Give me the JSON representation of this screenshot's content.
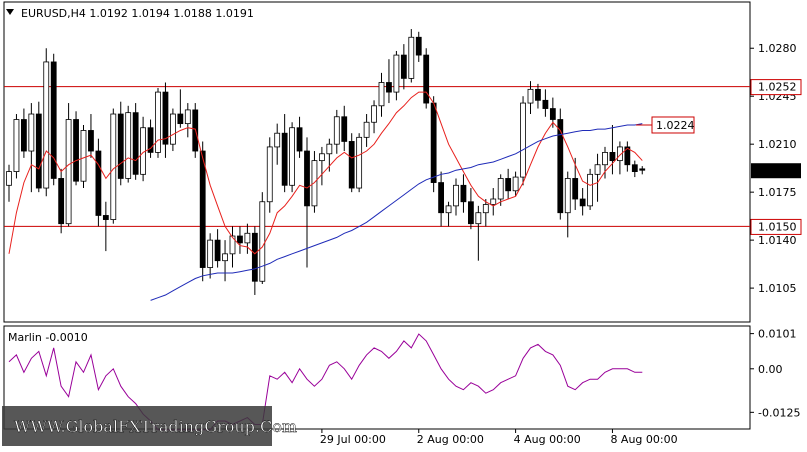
{
  "chart_header": {
    "symbol_line": "EURUSD,H4  1.0192 1.0194 1.0188 1.0191",
    "menu_icon": "triangle-down-icon"
  },
  "price_axis": {
    "ticks": [
      "1.0280",
      "1.0245",
      "1.0210",
      "1.0175",
      "1.0140",
      "1.0105"
    ],
    "tick_values": [
      1.028,
      1.0245,
      1.021,
      1.0175,
      1.014,
      1.0105
    ],
    "range": [
      1.0081,
      1.0313
    ]
  },
  "levels": {
    "upper": {
      "label": "1.0252",
      "value": 1.0252,
      "color": "#cc0000"
    },
    "lower": {
      "label": "1.0150",
      "value": 1.015,
      "color": "#cc0000"
    },
    "current": {
      "label": "1.0191",
      "value": 1.0191
    },
    "callout": {
      "label": "1.0224",
      "value": 1.0224,
      "color": "#cc0000"
    }
  },
  "time_axis": {
    "labels": [
      "29 Jul 00:00",
      "2 Aug 00:00",
      "4 Aug 00:00",
      "8 Aug 00:00"
    ]
  },
  "indicator": {
    "title": "Marlin -0.0010",
    "ticks": [
      "0.0101",
      "0.00",
      "-0.0125"
    ],
    "tick_values": [
      0.0101,
      0.0,
      -0.0125
    ],
    "range": [
      -0.017,
      0.012
    ],
    "color": "#990099"
  },
  "watermark": "WWW.GlobalFXTradingGroup.Com",
  "colors": {
    "bull": "#ffffff",
    "bear": "#000000",
    "fast_ma": "#e8211d",
    "slow_ma": "#1f2bb8"
  },
  "chart_data": {
    "type": "candlestick",
    "candles": [
      [
        1.018,
        1.0195,
        1.0168,
        1.019
      ],
      [
        1.019,
        1.0232,
        1.0185,
        1.0228
      ],
      [
        1.0228,
        1.0236,
        1.02,
        1.0205
      ],
      [
        1.0205,
        1.024,
        1.0175,
        1.0232
      ],
      [
        1.0232,
        1.0241,
        1.0175,
        1.0178
      ],
      [
        1.0178,
        1.028,
        1.0172,
        1.027
      ],
      [
        1.027,
        1.0276,
        1.018,
        1.0185
      ],
      [
        1.0185,
        1.0192,
        1.0145,
        1.0152
      ],
      [
        1.0152,
        1.024,
        1.015,
        1.0228
      ],
      [
        1.0228,
        1.0234,
        1.018,
        1.0183
      ],
      [
        1.0183,
        1.0224,
        1.0178,
        1.022
      ],
      [
        1.022,
        1.0232,
        1.02,
        1.0205
      ],
      [
        1.0205,
        1.0214,
        1.015,
        1.0158
      ],
      [
        1.0158,
        1.0168,
        1.0132,
        1.0155
      ],
      [
        1.0155,
        1.0236,
        1.0152,
        1.0232
      ],
      [
        1.0232,
        1.0241,
        1.018,
        1.0185
      ],
      [
        1.0185,
        1.0238,
        1.0182,
        1.0233
      ],
      [
        1.0233,
        1.024,
        1.0184,
        1.0188
      ],
      [
        1.0188,
        1.023,
        1.0183,
        1.0222
      ],
      [
        1.0222,
        1.0228,
        1.02,
        1.0204
      ],
      [
        1.0204,
        1.0251,
        1.02,
        1.0248
      ],
      [
        1.0248,
        1.0255,
        1.02,
        1.021
      ],
      [
        1.021,
        1.0236,
        1.0205,
        1.0232
      ],
      [
        1.0232,
        1.025,
        1.0222,
        1.0225
      ],
      [
        1.0225,
        1.024,
        1.0215,
        1.0235
      ],
      [
        1.0235,
        1.024,
        1.02,
        1.0205
      ],
      [
        1.0205,
        1.0212,
        1.011,
        1.012
      ],
      [
        1.012,
        1.0145,
        1.0112,
        1.014
      ],
      [
        1.014,
        1.0148,
        1.012,
        1.0125
      ],
      [
        1.0125,
        1.014,
        1.011,
        1.013
      ],
      [
        1.013,
        1.015,
        1.012,
        1.0143
      ],
      [
        1.0143,
        1.015,
        1.013,
        1.0138
      ],
      [
        1.0138,
        1.0152,
        1.013,
        1.0145
      ],
      [
        1.0145,
        1.015,
        1.01,
        1.011
      ],
      [
        1.011,
        1.0175,
        1.0108,
        1.0168
      ],
      [
        1.0168,
        1.0215,
        1.016,
        1.0208
      ],
      [
        1.0208,
        1.0225,
        1.0195,
        1.0218
      ],
      [
        1.0218,
        1.0232,
        1.0175,
        1.018
      ],
      [
        1.018,
        1.0226,
        1.0175,
        1.0222
      ],
      [
        1.0222,
        1.023,
        1.02,
        1.0205
      ],
      [
        1.0205,
        1.0215,
        1.012,
        1.0165
      ],
      [
        1.0165,
        1.0205,
        1.016,
        1.0198
      ],
      [
        1.0198,
        1.0208,
        1.018,
        1.0203
      ],
      [
        1.0203,
        1.0214,
        1.019,
        1.021
      ],
      [
        1.021,
        1.0235,
        1.0203,
        1.023
      ],
      [
        1.023,
        1.0238,
        1.0205,
        1.0212
      ],
      [
        1.0212,
        1.0218,
        1.0175,
        1.0178
      ],
      [
        1.0178,
        1.0218,
        1.0175,
        1.0215
      ],
      [
        1.0215,
        1.0232,
        1.0208,
        1.0226
      ],
      [
        1.0226,
        1.0242,
        1.0218,
        1.0238
      ],
      [
        1.0238,
        1.0262,
        1.023,
        1.0255
      ],
      [
        1.0255,
        1.0272,
        1.024,
        1.0248
      ],
      [
        1.0248,
        1.0278,
        1.0242,
        1.0275
      ],
      [
        1.0275,
        1.0283,
        1.025,
        1.0258
      ],
      [
        1.0258,
        1.0294,
        1.0255,
        1.0288
      ],
      [
        1.0288,
        1.0292,
        1.027,
        1.0275
      ],
      [
        1.0275,
        1.028,
        1.0236,
        1.024
      ],
      [
        1.024,
        1.0245,
        1.0175,
        1.0182
      ],
      [
        1.0182,
        1.019,
        1.015,
        1.016
      ],
      [
        1.016,
        1.0168,
        1.015,
        1.0165
      ],
      [
        1.0165,
        1.0185,
        1.0158,
        1.018
      ],
      [
        1.018,
        1.0188,
        1.016,
        1.0168
      ],
      [
        1.0168,
        1.0178,
        1.0148,
        1.0152
      ],
      [
        1.0152,
        1.0165,
        1.0125,
        1.016
      ],
      [
        1.016,
        1.017,
        1.015,
        1.0166
      ],
      [
        1.0166,
        1.0178,
        1.0158,
        1.017
      ],
      [
        1.017,
        1.0188,
        1.0165,
        1.0185
      ],
      [
        1.0185,
        1.0192,
        1.017,
        1.0176
      ],
      [
        1.0176,
        1.019,
        1.0172,
        1.0186
      ],
      [
        1.0186,
        1.0245,
        1.018,
        1.024
      ],
      [
        1.024,
        1.0256,
        1.0232,
        1.025
      ],
      [
        1.025,
        1.0254,
        1.0236,
        1.0242
      ],
      [
        1.0242,
        1.025,
        1.023,
        1.0236
      ],
      [
        1.0236,
        1.0244,
        1.0222,
        1.0228
      ],
      [
        1.0228,
        1.0236,
        1.0155,
        1.016
      ],
      [
        1.016,
        1.019,
        1.0142,
        1.0185
      ],
      [
        1.0185,
        1.02,
        1.0162,
        1.017
      ],
      [
        1.017,
        1.0178,
        1.0158,
        1.0165
      ],
      [
        1.0165,
        1.0192,
        1.0162,
        1.0188
      ],
      [
        1.0188,
        1.0203,
        1.0168,
        1.0195
      ],
      [
        1.0195,
        1.0208,
        1.0185,
        1.0204
      ],
      [
        1.0204,
        1.0224,
        1.0188,
        1.0198
      ],
      [
        1.0198,
        1.0212,
        1.0188,
        1.0208
      ],
      [
        1.0208,
        1.0212,
        1.019,
        1.0195
      ],
      [
        1.0195,
        1.0198,
        1.0186,
        1.019
      ],
      [
        1.0192,
        1.0194,
        1.0188,
        1.0191
      ]
    ],
    "fast_ma": [
      1.013,
      1.016,
      1.0182,
      1.0195,
      1.0192,
      1.0205,
      1.02,
      1.019,
      1.0195,
      1.0198,
      1.02,
      1.0202,
      1.0195,
      1.0185,
      1.0192,
      1.0196,
      1.02,
      1.0198,
      1.0204,
      1.0207,
      1.0213,
      1.0214,
      1.0217,
      1.022,
      1.0222,
      1.0221,
      1.02,
      1.018,
      1.0165,
      1.015,
      1.0142,
      1.0136,
      1.0135,
      1.013,
      1.0135,
      1.0145,
      1.016,
      1.0165,
      1.0172,
      1.018,
      1.0178,
      1.0182,
      1.0188,
      1.0194,
      1.02,
      1.0204,
      1.02,
      1.0202,
      1.0205,
      1.021,
      1.0218,
      1.0225,
      1.0233,
      1.0238,
      1.0244,
      1.0248,
      1.0248,
      1.024,
      1.0225,
      1.021,
      1.02,
      1.019,
      1.018,
      1.0172,
      1.0168,
      1.0165,
      1.0168,
      1.017,
      1.0172,
      1.0182,
      1.0195,
      1.0208,
      1.0218,
      1.0226,
      1.022,
      1.0208,
      1.0195,
      1.0183,
      1.018,
      1.0182,
      1.019,
      1.0196,
      1.0202,
      1.0207,
      1.0204,
      1.0198
    ],
    "slow_ma": [
      null,
      null,
      null,
      null,
      null,
      null,
      null,
      null,
      null,
      null,
      null,
      null,
      null,
      null,
      null,
      null,
      null,
      null,
      null,
      1.0096,
      1.0098,
      1.01,
      1.0103,
      1.0106,
      1.0109,
      1.0112,
      1.0114,
      1.0115,
      1.0116,
      1.0116,
      1.0116,
      1.0117,
      1.0118,
      1.0119,
      1.0121,
      1.0123,
      1.0126,
      1.0128,
      1.013,
      1.0132,
      1.0134,
      1.0136,
      1.0138,
      1.014,
      1.0142,
      1.0145,
      1.0147,
      1.015,
      1.0153,
      1.0157,
      1.0161,
      1.0165,
      1.0169,
      1.0173,
      1.0177,
      1.0181,
      1.0184,
      1.0186,
      1.0188,
      1.0189,
      1.0191,
      1.0192,
      1.0193,
      1.0195,
      1.0196,
      1.0197,
      1.0199,
      1.0201,
      1.0203,
      1.0206,
      1.0209,
      1.0212,
      1.0214,
      1.0216,
      1.0217,
      1.0218,
      1.0219,
      1.022,
      1.022,
      1.0221,
      1.0221,
      1.0222,
      1.0223,
      1.0224,
      1.0224,
      1.0225
    ],
    "marlin": [
      0.002,
      0.004,
      -0.001,
      0.003,
      0.005,
      -0.002,
      0.006,
      -0.005,
      -0.008,
      0.002,
      -0.001,
      0.004,
      -0.006,
      -0.002,
      0.0,
      -0.005,
      -0.008,
      -0.01,
      -0.013,
      -0.015,
      -0.0175,
      -0.0175,
      -0.0175,
      -0.0175,
      -0.0175,
      -0.0175,
      -0.0175,
      -0.0175,
      -0.015,
      -0.015,
      -0.016,
      -0.015,
      -0.014,
      -0.016,
      -0.016,
      -0.002,
      -0.003,
      -0.001,
      -0.004,
      0.0,
      -0.003,
      -0.005,
      -0.003,
      0.001,
      0.002,
      0.0,
      -0.003,
      0.001,
      0.004,
      0.006,
      0.005,
      0.003,
      0.005,
      0.008,
      0.006,
      0.01,
      0.008,
      0.004,
      0.0,
      -0.003,
      -0.005,
      -0.006,
      -0.004,
      -0.005,
      -0.007,
      -0.006,
      -0.004,
      -0.003,
      -0.002,
      0.003,
      0.006,
      0.007,
      0.005,
      0.004,
      0.001,
      -0.005,
      -0.006,
      -0.004,
      -0.003,
      -0.003,
      -0.001,
      0.0,
      0.0,
      0.0,
      -0.001,
      -0.001
    ],
    "xlabels_index": [
      42,
      55,
      68,
      81
    ]
  }
}
